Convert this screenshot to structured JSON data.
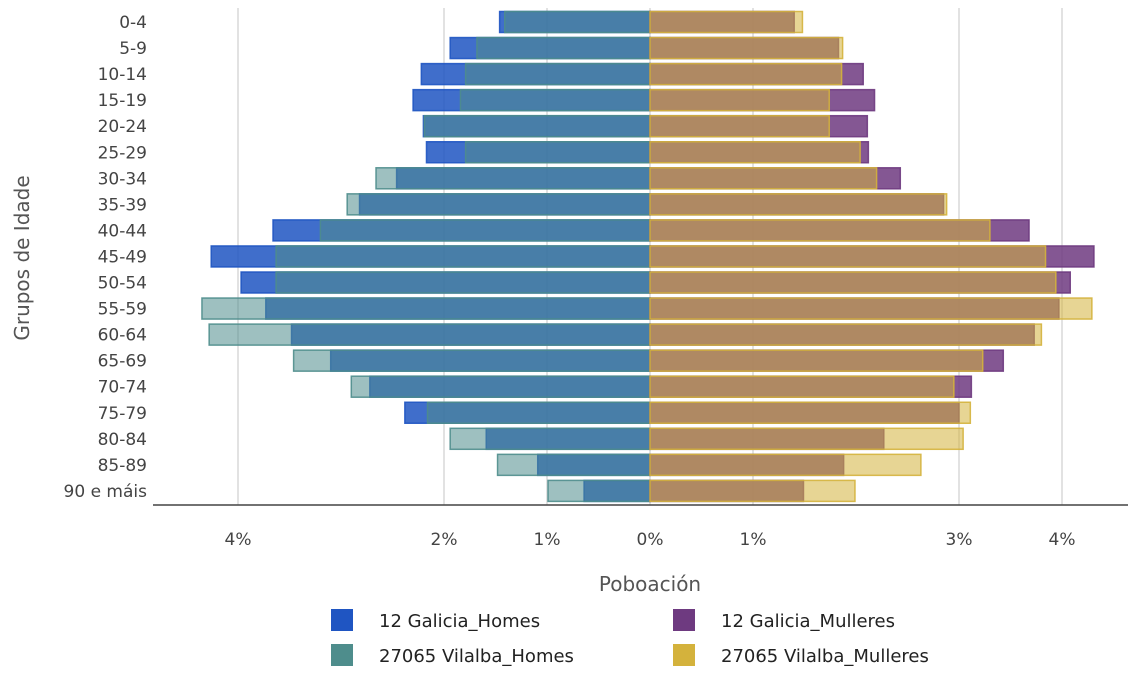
{
  "chart_data": {
    "type": "bar",
    "orientation": "horizontal",
    "ylabel": "Grupos de Idade",
    "xlabel": "Poboación",
    "x_ticks": [
      {
        "value": -4,
        "label": "4%"
      },
      {
        "value": -2,
        "label": "2%"
      },
      {
        "value": -1,
        "label": "1%"
      },
      {
        "value": 0,
        "label": "0%"
      },
      {
        "value": 1,
        "label": "1%"
      },
      {
        "value": 3,
        "label": "3%"
      },
      {
        "value": 4,
        "label": "4%"
      }
    ],
    "xlim": [
      -4.82,
      4.82
    ],
    "grid": true,
    "legend_position": "bottom",
    "categories": [
      "90 e máis",
      "85-89",
      "80-84",
      "75-79",
      "70-74",
      "65-69",
      "60-64",
      "55-59",
      "50-54",
      "45-49",
      "40-44",
      "35-39",
      "30-34",
      "25-29",
      "20-24",
      "15-19",
      "10-14",
      "5-9",
      "0-4"
    ],
    "series": [
      {
        "name": "12 Galicia_Homes",
        "color": "#1f55c2",
        "values": [
          0.64,
          1.09,
          1.59,
          2.38,
          2.72,
          3.1,
          3.48,
          3.73,
          3.97,
          4.26,
          3.66,
          2.82,
          2.46,
          2.17,
          2.2,
          2.3,
          2.22,
          1.94,
          1.46
        ]
      },
      {
        "name": "27065 Vilalba_Homes",
        "color": "#4e8d8c",
        "values": [
          0.99,
          1.48,
          1.94,
          2.16,
          2.9,
          3.46,
          4.28,
          4.35,
          3.63,
          3.63,
          3.2,
          2.94,
          2.66,
          1.79,
          2.19,
          1.84,
          1.79,
          1.68,
          1.41
        ]
      },
      {
        "name": "12 Galicia_Mulleres",
        "color": "#6e3a80",
        "values": [
          1.49,
          1.88,
          2.27,
          3.0,
          3.12,
          3.43,
          3.73,
          3.97,
          4.08,
          4.31,
          3.68,
          2.85,
          2.43,
          2.12,
          2.11,
          2.18,
          2.07,
          1.83,
          1.4
        ]
      },
      {
        "name": "27065 Vilalba_Mulleres",
        "color": "#d4b23c",
        "values": [
          1.99,
          2.63,
          3.04,
          3.11,
          2.95,
          3.23,
          3.8,
          4.29,
          3.94,
          3.84,
          3.3,
          2.88,
          2.2,
          2.04,
          1.74,
          1.74,
          1.86,
          1.87,
          1.48
        ]
      }
    ]
  }
}
